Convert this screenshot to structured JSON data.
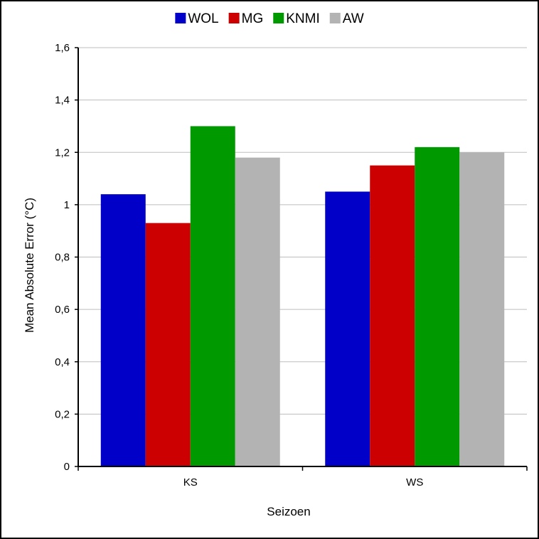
{
  "chart_data": {
    "type": "bar",
    "categories": [
      "KS",
      "WS"
    ],
    "series": [
      {
        "name": "WOL",
        "values": [
          1.04,
          1.05
        ],
        "color": "#0000c8"
      },
      {
        "name": "MG",
        "values": [
          0.93,
          1.15
        ],
        "color": "#cc0000"
      },
      {
        "name": "KNMI",
        "values": [
          1.3,
          1.22
        ],
        "color": "#009900"
      },
      {
        "name": "AW",
        "values": [
          1.18,
          1.2
        ],
        "color": "#b3b3b3"
      }
    ],
    "ylim": [
      0,
      1.6
    ],
    "yticks": [
      0,
      0.2,
      0.4,
      0.6,
      0.8,
      1,
      1.2,
      1.4,
      1.6
    ],
    "ytick_labels": [
      "0",
      "0,2",
      "0,4",
      "0,6",
      "0,8",
      "1",
      "1,2",
      "1,4",
      "1,6"
    ],
    "xlabel": "Seizoen",
    "ylabel": "Mean Absolute Error (°C)",
    "grid": true,
    "legend_position": "top-center"
  }
}
